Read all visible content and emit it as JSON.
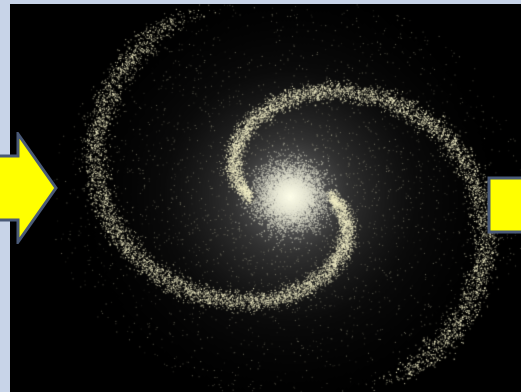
{
  "colors": {
    "frame": "#c8d4e8",
    "space": "#000000",
    "arrow_fill": "#ffff00",
    "arrow_stroke": "#4a5a78",
    "star_color": "#f4f0c8"
  },
  "controls": {
    "previous": {
      "icon": "arrow-left-icon"
    },
    "next": {
      "icon": "arrow-right-icon"
    }
  },
  "scene": {
    "subject": "spiral-galaxy",
    "arms": 2
  }
}
